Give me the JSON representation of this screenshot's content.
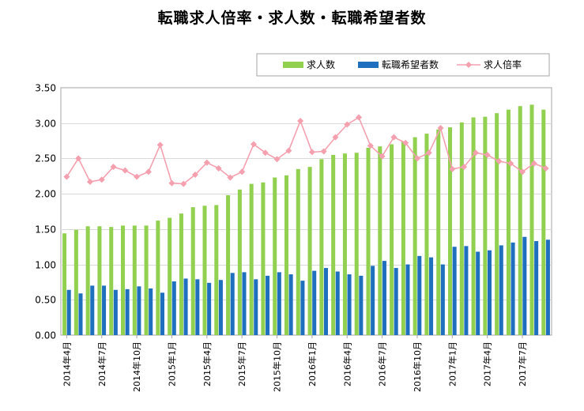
{
  "chart_data": {
    "type": "bar",
    "title": "転職求人倍率・求人数・転職希望者数",
    "xlabel": "",
    "ylabel": "",
    "ylim": [
      0,
      3.5
    ],
    "yticks": [
      "0.00",
      "0.50",
      "1.00",
      "1.50",
      "2.00",
      "2.50",
      "3.00",
      "3.50"
    ],
    "grid": true,
    "legend_position": "top-right",
    "categories": [
      "2014年4月",
      "2014年5月",
      "2014年6月",
      "2014年7月",
      "2014年8月",
      "2014年9月",
      "2014年10月",
      "2014年11月",
      "2014年12月",
      "2015年1月",
      "2015年2月",
      "2015年3月",
      "2015年4月",
      "2015年5月",
      "2015年6月",
      "2015年7月",
      "2015年8月",
      "2015年9月",
      "2015年10月",
      "2015年11月",
      "2015年12月",
      "2016年1月",
      "2016年2月",
      "2016年3月",
      "2016年4月",
      "2016年5月",
      "2016年6月",
      "2016年7月",
      "2016年8月",
      "2016年9月",
      "2016年10月",
      "2016年11月",
      "2016年12月",
      "2017年1月",
      "2017年2月",
      "2017年3月",
      "2017年4月",
      "2017年5月",
      "2017年6月",
      "2017年7月",
      "2017年8月",
      "2017年9月"
    ],
    "x_tick_labels": [
      "2014年4月",
      "",
      "",
      "2014年7月",
      "",
      "",
      "2014年10月",
      "",
      "",
      "2015年1月",
      "",
      "",
      "2015年4月",
      "",
      "",
      "2015年7月",
      "",
      "",
      "2015年10月",
      "",
      "",
      "2016年1月",
      "",
      "",
      "2016年4月",
      "",
      "",
      "2016年7月",
      "",
      "",
      "2016年10月",
      "",
      "",
      "2017年1月",
      "",
      "",
      "2017年4月",
      "",
      "",
      "2017年7月",
      "",
      ""
    ],
    "series": [
      {
        "name": "求人数",
        "type": "bar",
        "color": "#92d050",
        "values": [
          1.44,
          1.49,
          1.54,
          1.54,
          1.53,
          1.55,
          1.55,
          1.55,
          1.62,
          1.66,
          1.72,
          1.81,
          1.83,
          1.84,
          1.98,
          2.06,
          2.14,
          2.16,
          2.23,
          2.26,
          2.35,
          2.38,
          2.49,
          2.55,
          2.57,
          2.58,
          2.65,
          2.67,
          2.7,
          2.74,
          2.8,
          2.85,
          2.91,
          2.94,
          3.01,
          3.08,
          3.09,
          3.14,
          3.19,
          3.24,
          3.26,
          3.19
        ]
      },
      {
        "name": "転職希望者数",
        "type": "bar",
        "color": "#1f6fbf",
        "values": [
          0.64,
          0.59,
          0.7,
          0.7,
          0.64,
          0.65,
          0.69,
          0.66,
          0.6,
          0.76,
          0.8,
          0.79,
          0.74,
          0.78,
          0.88,
          0.89,
          0.79,
          0.84,
          0.89,
          0.86,
          0.77,
          0.91,
          0.95,
          0.9,
          0.86,
          0.84,
          0.98,
          1.05,
          0.95,
          1.0,
          1.12,
          1.1,
          1.0,
          1.25,
          1.26,
          1.18,
          1.2,
          1.27,
          1.31,
          1.39,
          1.33,
          1.35
        ]
      },
      {
        "name": "求人倍率",
        "type": "line",
        "color": "#f4a0ae",
        "marker": "diamond",
        "values": [
          2.24,
          2.5,
          2.17,
          2.2,
          2.38,
          2.33,
          2.24,
          2.31,
          2.69,
          2.15,
          2.14,
          2.27,
          2.44,
          2.36,
          2.23,
          2.31,
          2.7,
          2.58,
          2.49,
          2.61,
          3.03,
          2.59,
          2.6,
          2.8,
          2.98,
          3.08,
          2.68,
          2.53,
          2.8,
          2.72,
          2.5,
          2.58,
          2.93,
          2.35,
          2.38,
          2.58,
          2.55,
          2.46,
          2.43,
          2.31,
          2.43,
          2.36
        ]
      }
    ]
  }
}
